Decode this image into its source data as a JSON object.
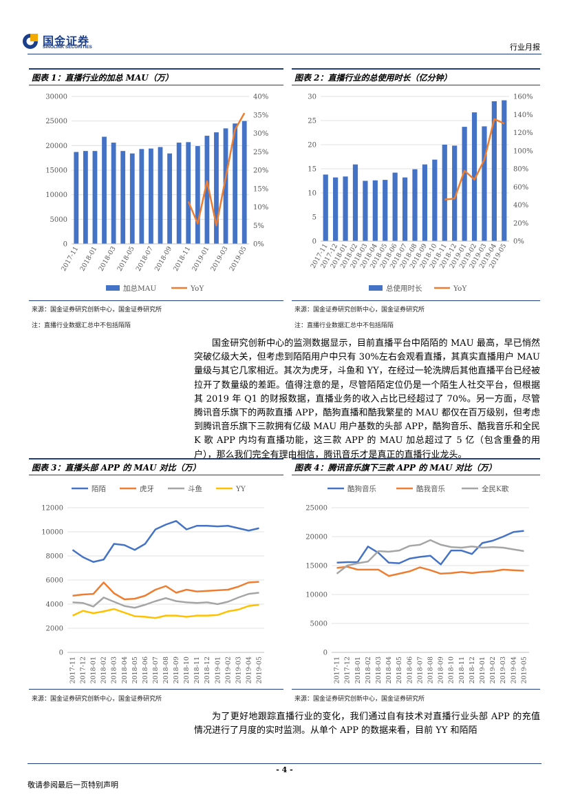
{
  "header": {
    "logo_cn": "国金证券",
    "logo_en": "SINOLINK SECURITIES",
    "doc_type": "行业月报"
  },
  "figures": [
    {
      "title": "图表 1：直播行业的加总 MAU（万）",
      "source": "来源：国金证券研究创新中心，国金证券研究所",
      "note": "注：直播行业数据汇总中不包括陌陌"
    },
    {
      "title": "图表 2：直播行业的总使用时长（亿分钟）",
      "source": "来源：国金证券研究创新中心，国金证券研究所",
      "note": "注：直播行业数据汇总中不包括陌陌"
    },
    {
      "title": "图表 3：直播头部 APP 的 MAU 对比（万）",
      "source": "来源：国金证券研究创新中心，国金证券研究所"
    },
    {
      "title": "图表 4：腾讯音乐旗下三款 APP 的 MAU 对比（万）",
      "source": "来源：国金证券研究创新中心，国金证券研究所"
    }
  ],
  "paragraph1": "国金研究创新中心的监测数据显示，目前直播平台中陌陌的 MAU 最高，早已悄然突破亿级大关，但考虑到陌陌用户中只有 30%左右会观看直播，其真实直播用户 MAU 量级与其它几家相近。其次为虎牙，斗鱼和 YY，在经过一轮洗牌后其他直播平台已经被拉开了数量级的差距。值得注意的是，尽管陌陌定位仍是一个陌生人社交平台，但根据其 2019 年 Q1 的财报数据，直播业务的收入占比已经超过了 70%。另一方面，尽管腾讯音乐旗下的两款直播 APP，酷狗直播和酷我繁星的 MAU 都仅在百万级别，但考虑到腾讯音乐旗下三款拥有亿级 MAU 用户基数的头部 APP，酷狗音乐、酷我音乐和全民 K 歌 APP 内均有直播功能，这三款 APP 的 MAU 加总超过了 5 亿（包含重叠的用户），那么我们完全有理由相信，腾讯音乐才是真正的直播行业龙头。",
  "paragraph2": "为了更好地跟踪直播行业的变化，我们通过自有技术对直播行业头部 APP 的充值情况进行了月度的实时监测。从单个 APP 的数据来看，目前 YY 和陌陌",
  "footer": {
    "page": "- 4 -",
    "disclaimer": "敬请参阅最后一页特别声明"
  },
  "chart_data": [
    {
      "type": "bar",
      "title": "图表 1：直播行业的加总 MAU（万）",
      "categories": [
        "2017-11",
        "2017-12",
        "2018-01",
        "2018-02",
        "2018-03",
        "2018-04",
        "2018-05",
        "2018-06",
        "2018-07",
        "2018-08",
        "2018-09",
        "2018-10",
        "2018-11",
        "2018-12",
        "2019-01",
        "2019-02",
        "2019-03",
        "2019-04",
        "2019-05"
      ],
      "tick_labels": [
        "2017-11",
        "2018-01",
        "2018-03",
        "2018-05",
        "2018-07",
        "2018-09",
        "2018-11",
        "2019-01",
        "2019-03",
        "2019-05"
      ],
      "series": [
        {
          "name": "加总MAU",
          "type": "bar",
          "color": "#4472c4",
          "values": [
            18700,
            18900,
            18900,
            21800,
            20600,
            18900,
            18400,
            19300,
            19400,
            19700,
            18400,
            20600,
            20700,
            19900,
            22000,
            22700,
            23500,
            24500,
            25000
          ]
        },
        {
          "name": "YoY",
          "type": "line",
          "axis": "right",
          "color": "#ed7d31",
          "values": [
            null,
            null,
            null,
            null,
            null,
            null,
            null,
            null,
            null,
            null,
            null,
            null,
            11.5,
            5.5,
            17,
            5,
            18,
            31,
            35.5
          ]
        }
      ],
      "yticks": [
        "0",
        "5000",
        "10000",
        "15000",
        "20000",
        "25000",
        "30000"
      ],
      "y2ticks": [
        "0%",
        "5%",
        "10%",
        "15%",
        "20%",
        "25%",
        "30%",
        "35%",
        "40%"
      ],
      "ylim": [
        0,
        30000
      ],
      "y2lim": [
        0,
        40
      ],
      "legend": [
        "加总MAU",
        "YoY"
      ]
    },
    {
      "type": "bar",
      "title": "图表 2：直播行业的总使用时长（亿分钟）",
      "categories": [
        "2017-11",
        "2017-12",
        "2018-01",
        "2018-02",
        "2018-03",
        "2018-04",
        "2018-05",
        "2018-06",
        "2018-07",
        "2018-08",
        "2018-09",
        "2018-10",
        "2018-11",
        "2018-12",
        "2019-01",
        "2019-02",
        "2019-03",
        "2019-04",
        "2019-05"
      ],
      "tick_labels": [
        "2017-11",
        "2017-12",
        "2018-01",
        "2018-02",
        "2018-03",
        "2018-04",
        "2018-05",
        "2018-06",
        "2018-07",
        "2018-08",
        "2018-09",
        "2018-10",
        "2018-11",
        "2018-12",
        "2019-01",
        "2019-02",
        "2019-03",
        "2019-04",
        "2019-05"
      ],
      "series": [
        {
          "name": "总使用时长",
          "type": "bar",
          "color": "#4472c4",
          "values": [
            13.8,
            13.2,
            13.4,
            15.9,
            12.5,
            12.6,
            12.7,
            14.2,
            13.2,
            14.9,
            15.9,
            16.9,
            20.0,
            19.8,
            23.7,
            26.7,
            23.8,
            29.0,
            29.2
          ]
        },
        {
          "name": "YoY",
          "type": "line",
          "axis": "right",
          "color": "#ed7d31",
          "values": [
            null,
            null,
            null,
            null,
            null,
            null,
            null,
            null,
            null,
            null,
            null,
            null,
            46,
            47,
            78,
            68,
            90,
            135,
            130
          ]
        }
      ],
      "yticks": [
        "0",
        "5",
        "10",
        "15",
        "20",
        "25",
        "30"
      ],
      "y2ticks": [
        "0%",
        "20%",
        "40%",
        "60%",
        "80%",
        "100%",
        "120%",
        "140%",
        "160%"
      ],
      "ylim": [
        0,
        30
      ],
      "y2lim": [
        0,
        160
      ],
      "legend": [
        "总使用时长",
        "YoY"
      ]
    },
    {
      "type": "line",
      "title": "图表 3：直播头部 APP 的 MAU 对比（万）",
      "categories": [
        "2017-11",
        "2017-12",
        "2018-01",
        "2018-02",
        "2018-03",
        "2018-04",
        "2018-05",
        "2018-06",
        "2018-07",
        "2018-08",
        "2018-09",
        "2018-10",
        "2018-11",
        "2018-12",
        "2019-01",
        "2019-02",
        "2019-03",
        "2019-04",
        "2019-05"
      ],
      "series": [
        {
          "name": "陌陌",
          "color": "#4472c4",
          "values": [
            8500,
            7900,
            7500,
            7700,
            9000,
            8900,
            8500,
            9000,
            10200,
            10600,
            10900,
            10200,
            10500,
            10500,
            10450,
            10500,
            10300,
            10100,
            10300
          ]
        },
        {
          "name": "虎牙",
          "color": "#ed7d31",
          "values": [
            4700,
            4800,
            4850,
            5800,
            4900,
            4400,
            4450,
            4700,
            5200,
            5500,
            4950,
            5200,
            5050,
            5100,
            5150,
            5200,
            5450,
            5800,
            5850
          ]
        },
        {
          "name": "斗鱼",
          "color": "#a5a5a5",
          "values": [
            4150,
            4100,
            3800,
            4550,
            4200,
            3850,
            3700,
            3950,
            4250,
            4500,
            4250,
            4150,
            4100,
            4150,
            4000,
            4200,
            4550,
            4850,
            4950
          ]
        },
        {
          "name": "YY",
          "color": "#ffc000",
          "values": [
            3050,
            3450,
            3250,
            3400,
            3600,
            3300,
            3000,
            2950,
            2850,
            3050,
            3050,
            2950,
            3050,
            3050,
            3100,
            3400,
            3550,
            3850,
            3950
          ]
        }
      ],
      "yticks": [
        "0",
        "2000",
        "4000",
        "6000",
        "8000",
        "10000",
        "12000"
      ],
      "ylim": [
        0,
        12000
      ],
      "legend": [
        "陌陌",
        "虎牙",
        "斗鱼",
        "YY"
      ]
    },
    {
      "type": "line",
      "title": "图表 4：腾讯音乐旗下三款 APP 的 MAU 对比（万）",
      "categories": [
        "2017-11",
        "2017-12",
        "2018-01",
        "2018-02",
        "2018-03",
        "2018-04",
        "2018-05",
        "2018-06",
        "2018-07",
        "2018-08",
        "2018-09",
        "2018-10",
        "2018-11",
        "2018-12",
        "2019-01",
        "2019-02",
        "2019-03",
        "2019-04",
        "2019-05"
      ],
      "series": [
        {
          "name": "酷狗音乐",
          "color": "#4472c4",
          "values": [
            15500,
            15600,
            15600,
            18300,
            17200,
            15500,
            15400,
            16200,
            16500,
            16700,
            15200,
            17600,
            17600,
            17000,
            18900,
            19300,
            20000,
            20800,
            21000
          ]
        },
        {
          "name": "酷我音乐",
          "color": "#ed7d31",
          "values": [
            14600,
            14800,
            14300,
            14300,
            14300,
            13200,
            13600,
            14000,
            14700,
            14200,
            13600,
            13700,
            13900,
            13700,
            13900,
            14000,
            14300,
            14200,
            14100
          ]
        },
        {
          "name": "全民K歌",
          "color": "#a5a5a5",
          "values": [
            13600,
            15000,
            15400,
            15700,
            17500,
            17400,
            17600,
            18400,
            18600,
            19400,
            18600,
            18200,
            18100,
            18300,
            18100,
            18200,
            18100,
            17800,
            17500
          ]
        }
      ],
      "yticks": [
        "0",
        "5000",
        "10000",
        "15000",
        "20000",
        "25000"
      ],
      "ylim": [
        0,
        25000
      ],
      "legend": [
        "酷狗音乐",
        "酷我音乐",
        "全民K歌"
      ]
    }
  ]
}
